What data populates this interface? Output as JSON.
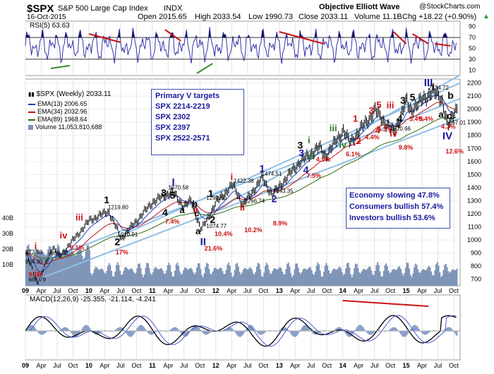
{
  "header": {
    "symbol": "$SPX",
    "name": "S&P 500 Large Cap Index",
    "exchange": "INDX",
    "brand": "Objective Elliott Wave",
    "credit": "@StockCharts.com",
    "date": "16-Oct-2015",
    "open": "Open 2015.65",
    "high": "High 2033.54",
    "low": "Low 1990.73",
    "close": "Close 2033.11",
    "volume": "Volume 11.1B",
    "chg": "Chg +18.22 (+0.90%)",
    "chg_arrow": "▲"
  },
  "colors": {
    "price": "#000000",
    "ema13": "#1f3fbf",
    "ema34": "#c0151b",
    "ema89": "#2e6b12",
    "volume": "#7f95b8",
    "rsi_fill": "#0a0a2a",
    "rsi_line": "#3333aa",
    "channel": "#8fbfe6",
    "red": "#cc1111",
    "blue": "#1a1aa0",
    "green": "#2a7a2a",
    "cyan": "#33b5e5",
    "macd_hist": "#8aa0c8"
  },
  "rsi": {
    "label": "RSI(5) 63.63",
    "ticks": [
      "90",
      "70",
      "50",
      "30",
      "10"
    ]
  },
  "main_legend": {
    "title": "$SPX (Weekly) 2033.11",
    "ema13": "EMA(13) 2006.65",
    "ema34": "EMA(34) 2032.96",
    "ema89": "EMA(89) 1968.64",
    "volume": "Volume 11,053,810,688"
  },
  "targets": {
    "title": "Primary V targets",
    "items": [
      "SPX 2214-2219",
      "SPX 2302",
      "SPX 2397",
      "SPX 2522-2571"
    ]
  },
  "notes": [
    "Economy slowing 47.8%",
    "Consumers bullish 57.4%",
    "Investors bullish 53.6%"
  ],
  "macd": {
    "label": "MACD(12,26,9) -25.355, -21.114, -4.241"
  },
  "chart_data": {
    "type": "line",
    "title": "$SPX S&P 500 Large Cap Index INDX",
    "price_axis": [
      "2200",
      "2100",
      "2000",
      "1900",
      "1800",
      "1700",
      "1600",
      "1500",
      "1400",
      "1300",
      "1200",
      "1100",
      "1000",
      "900",
      "800",
      "700"
    ],
    "volume_axis": [
      "40B",
      "30B",
      "20B",
      "10B"
    ],
    "x_labels": [
      "09",
      "Apr",
      "Jul",
      "Oct",
      "10",
      "Apr",
      "Jul",
      "Oct",
      "11",
      "Apr",
      "Jul",
      "Oct",
      "12",
      "Apr",
      "Jul",
      "Oct",
      "13",
      "Apr",
      "Jul",
      "Oct",
      "14",
      "Apr",
      "Jul",
      "Oct",
      "15",
      "Apr",
      "Jul",
      "Oct"
    ],
    "ylim": [
      650,
      2230
    ],
    "pivots": [
      {
        "year": 2009.0,
        "price": 900
      },
      {
        "year": 2009.18,
        "price": 667
      },
      {
        "year": 2009.42,
        "price": 950
      },
      {
        "year": 2009.52,
        "price": 870
      },
      {
        "year": 2010.0,
        "price": 1150
      },
      {
        "year": 2010.3,
        "price": 1219
      },
      {
        "year": 2010.5,
        "price": 1011
      },
      {
        "year": 2011.0,
        "price": 1292
      },
      {
        "year": 2011.3,
        "price": 1370
      },
      {
        "year": 2011.48,
        "price": 1258
      },
      {
        "year": 2011.6,
        "price": 1300
      },
      {
        "year": 2011.76,
        "price": 1075
      },
      {
        "year": 2012.0,
        "price": 1292
      },
      {
        "year": 2012.26,
        "price": 1422
      },
      {
        "year": 2012.42,
        "price": 1267
      },
      {
        "year": 2012.72,
        "price": 1474
      },
      {
        "year": 2012.88,
        "price": 1343
      },
      {
        "year": 2013.3,
        "price": 1590
      },
      {
        "year": 2013.62,
        "price": 1710
      },
      {
        "year": 2013.72,
        "price": 1640
      },
      {
        "year": 2014.0,
        "price": 1840
      },
      {
        "year": 2014.1,
        "price": 1740
      },
      {
        "year": 2014.5,
        "price": 1990
      },
      {
        "year": 2014.79,
        "price": 1820
      },
      {
        "year": 2015.0,
        "price": 2060
      },
      {
        "year": 2015.05,
        "price": 1990
      },
      {
        "year": 2015.4,
        "price": 2134
      },
      {
        "year": 2015.55,
        "price": 2080
      },
      {
        "year": 2015.65,
        "price": 1867
      },
      {
        "year": 2015.8,
        "price": 2033
      }
    ],
    "price_labels": [
      {
        "text": "877.86",
        "year": 2009.0,
        "price": 877
      },
      {
        "text": "804.30",
        "year": 2009.0,
        "price": 804
      },
      {
        "text": "666.79",
        "year": 2009.05,
        "price": 667
      },
      {
        "text": "869.32",
        "year": 2009.4,
        "price": 869
      },
      {
        "text": "1219.80",
        "year": 2010.3,
        "price": 1219
      },
      {
        "text": "1010.91",
        "year": 2010.45,
        "price": 1011
      },
      {
        "text": "1370.58",
        "year": 2011.25,
        "price": 1370
      },
      {
        "text": "1292.66",
        "year": 2011.85,
        "price": 1292
      },
      {
        "text": "1074.77",
        "year": 2011.85,
        "price": 1075
      },
      {
        "text": "1422.38",
        "year": 2012.28,
        "price": 1422
      },
      {
        "text": "1474.51",
        "year": 2012.72,
        "price": 1474
      },
      {
        "text": "1266.74",
        "year": 2012.45,
        "price": 1267
      },
      {
        "text": "1343.35",
        "year": 2012.9,
        "price": 1343
      },
      {
        "text": "1820.66",
        "year": 2014.75,
        "price": 1820
      },
      {
        "text": "2134.72",
        "year": 2015.35,
        "price": 2134
      },
      {
        "text": "1867.01",
        "year": 2015.62,
        "price": 1867
      }
    ],
    "wave_labels": [
      {
        "text": "I",
        "year": 2011.33,
        "price": 1415,
        "color": "blue",
        "size": 15
      },
      {
        "text": "II",
        "year": 2011.8,
        "price": 960,
        "color": "blue",
        "size": 15
      },
      {
        "text": "III",
        "year": 2015.35,
        "price": 2175,
        "color": "blue",
        "size": 15
      },
      {
        "text": "IV",
        "year": 2015.65,
        "price": 1770,
        "color": "blue",
        "size": 15
      },
      {
        "text": "1",
        "year": 2010.28,
        "price": 1280,
        "color": "black",
        "size": 14
      },
      {
        "text": "2",
        "year": 2010.45,
        "price": 960,
        "color": "black",
        "size": 14
      },
      {
        "text": "3",
        "year": 2011.18,
        "price": 1335,
        "color": "black",
        "size": 14
      },
      {
        "text": "4",
        "year": 2011.2,
        "price": 1185,
        "color": "black",
        "size": 14
      },
      {
        "text": "5",
        "year": 2011.32,
        "price": 1315,
        "color": "black",
        "size": 14
      },
      {
        "text": "a",
        "year": 2011.47,
        "price": 1205,
        "color": "black",
        "size": 13
      },
      {
        "text": "b",
        "year": 2011.67,
        "price": 1250,
        "color": "black",
        "size": 13
      },
      {
        "text": "c",
        "year": 2011.7,
        "price": 1180,
        "color": "black",
        "size": 13
      },
      {
        "text": "a",
        "year": 2011.72,
        "price": 1045,
        "color": "black",
        "size": 13
      },
      {
        "text": "1",
        "year": 2011.92,
        "price": 1330,
        "color": "black",
        "size": 14
      },
      {
        "text": "2",
        "year": 2011.95,
        "price": 1130,
        "color": "black",
        "size": 14
      },
      {
        "text": "1",
        "year": 2012.73,
        "price": 1520,
        "color": "blue",
        "size": 14
      },
      {
        "text": "2",
        "year": 2012.92,
        "price": 1290,
        "color": "blue",
        "size": 14
      },
      {
        "text": "3",
        "year": 2013.35,
        "price": 1640,
        "color": "blue",
        "size": 14
      },
      {
        "text": "4",
        "year": 2013.42,
        "price": 1510,
        "color": "blue",
        "size": 14
      },
      {
        "text": "i",
        "year": 2012.25,
        "price": 1460,
        "color": "red",
        "size": 13
      },
      {
        "text": "ii",
        "year": 2012.42,
        "price": 1225,
        "color": "red",
        "size": 13
      },
      {
        "text": "iii",
        "year": 2009.85,
        "price": 1150,
        "color": "red",
        "size": 13
      },
      {
        "text": "iv",
        "year": 2009.6,
        "price": 1010,
        "color": "red",
        "size": 13
      },
      {
        "text": "i",
        "year": 2009.16,
        "price": 930,
        "color": "red",
        "size": 13
      },
      {
        "text": "ii",
        "year": 2009.18,
        "price": 720,
        "color": "red",
        "size": 13
      },
      {
        "text": "a",
        "year": 2011.68,
        "price": 1210,
        "color": "red",
        "size": 13
      },
      {
        "text": "3",
        "year": 2013.33,
        "price": 1700,
        "color": "black",
        "size": 14
      },
      {
        "text": "i",
        "year": 2013.47,
        "price": 1740,
        "color": "green",
        "size": 13
      },
      {
        "text": "ii",
        "year": 2013.52,
        "price": 1615,
        "color": "green",
        "size": 13
      },
      {
        "text": "iii",
        "year": 2013.85,
        "price": 1830,
        "color": "green",
        "size": 13
      },
      {
        "text": "iv",
        "year": 2014.0,
        "price": 1705,
        "color": "green",
        "size": 13
      },
      {
        "text": "1",
        "year": 2014.2,
        "price": 1905,
        "color": "red",
        "size": 13
      },
      {
        "text": "2",
        "year": 2014.25,
        "price": 1735,
        "color": "red",
        "size": 13
      },
      {
        "text": "3",
        "year": 2014.45,
        "price": 1965,
        "color": "red",
        "size": 13
      },
      {
        "text": "4",
        "year": 2014.55,
        "price": 1815,
        "color": "red",
        "size": 13
      },
      {
        "text": "5",
        "year": 2014.57,
        "price": 2010,
        "color": "red",
        "size": 13
      },
      {
        "text": "iii",
        "year": 2014.75,
        "price": 2005,
        "color": "red",
        "size": 13
      },
      {
        "text": "iv",
        "year": 2014.8,
        "price": 1790,
        "color": "red",
        "size": 13
      },
      {
        "text": "3",
        "year": 2014.95,
        "price": 2040,
        "color": "black",
        "size": 14
      },
      {
        "text": "4",
        "year": 2014.9,
        "price": 1900,
        "color": "black",
        "size": 14
      },
      {
        "text": "5",
        "year": 2015.1,
        "price": 2065,
        "color": "black",
        "size": 14
      },
      {
        "text": "a",
        "year": 2015.55,
        "price": 1935,
        "color": "black",
        "size": 13
      },
      {
        "text": "b",
        "year": 2015.7,
        "price": 2080,
        "color": "black",
        "size": 14
      },
      {
        "text": "c",
        "year": 2015.68,
        "price": 1925,
        "color": "black",
        "size": 13
      }
    ],
    "percent_labels": [
      {
        "text": "9.1%",
        "year": 2009.05,
        "price": 720
      },
      {
        "text": "9.1%",
        "year": 2009.7,
        "price": 925
      },
      {
        "text": "17%",
        "year": 2010.42,
        "price": 890
      },
      {
        "text": "7.4%",
        "year": 2011.2,
        "price": 1125
      },
      {
        "text": "21.6%",
        "year": 2011.82,
        "price": 920
      },
      {
        "text": "10.4%",
        "year": 2011.98,
        "price": 1030
      },
      {
        "text": "10.2%",
        "year": 2012.45,
        "price": 1060
      },
      {
        "text": "8.9%",
        "year": 2012.9,
        "price": 1110
      },
      {
        "text": "7.5%",
        "year": 2013.43,
        "price": 1475
      },
      {
        "text": "4.9%",
        "year": 2013.58,
        "price": 1600
      },
      {
        "text": "6.1%",
        "year": 2014.05,
        "price": 1640
      },
      {
        "text": "4.4%",
        "year": 2014.35,
        "price": 1770
      },
      {
        "text": "4.3%",
        "year": 2014.55,
        "price": 1830
      },
      {
        "text": "9.8%",
        "year": 2014.88,
        "price": 1690
      },
      {
        "text": "5.4%",
        "year": 2015.05,
        "price": 1910
      },
      {
        "text": "5.4%",
        "year": 2015.2,
        "price": 1910
      },
      {
        "text": "4.3%",
        "year": 2015.55,
        "price": 1850
      },
      {
        "text": "12.6%",
        "year": 2015.62,
        "price": 1660
      }
    ],
    "grid": true
  }
}
